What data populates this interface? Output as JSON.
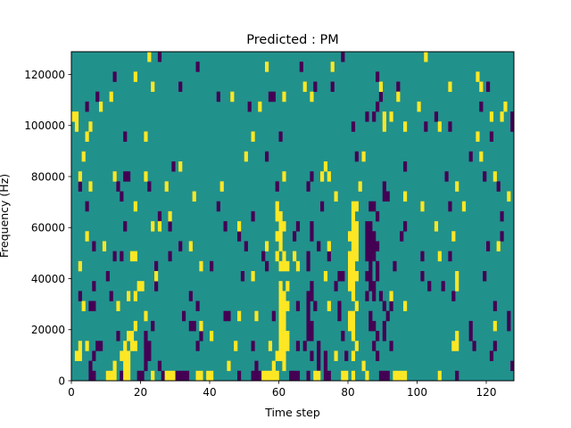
{
  "chart_data": {
    "type": "heatmap",
    "title": "Predicted : PM",
    "xlabel": "Time step",
    "ylabel": "Frequency (Hz)",
    "xlim": [
      0,
      128
    ],
    "ylim": [
      0,
      128906.25
    ],
    "n_time_steps": 128,
    "n_freq_bins": 33,
    "freq_bin_hz": 3906.25,
    "xticks": [
      0,
      20,
      40,
      60,
      80,
      100,
      120
    ],
    "xtick_labels": [
      "0",
      "20",
      "40",
      "60",
      "80",
      "100",
      "120"
    ],
    "yticks": [
      0,
      20000,
      40000,
      60000,
      80000,
      100000,
      120000
    ],
    "ytick_labels": [
      "0",
      "20000",
      "40000",
      "60000",
      "80000",
      "100000",
      "120000"
    ],
    "colormap": "viridis",
    "value_levels": {
      "low": 0,
      "default": 0.5,
      "high": 1
    },
    "colors": {
      "low": "#440154",
      "default": "#21918c",
      "high": "#fde725"
    },
    "cells_value_0_by_freq_bin": {
      "32": [
        25,
        78
      ],
      "31": [
        36,
        66
      ],
      "30": [
        12,
        88
      ],
      "29": [
        31,
        70,
        75,
        94,
        120
      ],
      "28": [
        7,
        42,
        57,
        58,
        89
      ],
      "27": [
        4,
        51,
        88,
        118
      ],
      "26": [
        85,
        87,
        105,
        127
      ],
      "25": [
        81,
        102,
        109,
        127
      ],
      "24": [
        15,
        60,
        121
      ],
      "22": [
        56,
        82,
        115
      ],
      "21": [
        29,
        96
      ],
      "20": [
        15,
        16,
        69,
        108,
        119
      ],
      "19": [
        2,
        13,
        22,
        59,
        68,
        90,
        123
      ],
      "18": [
        14,
        90,
        91
      ],
      "17": [
        4,
        42,
        72,
        86,
        87,
        109
      ],
      "16": [
        25,
        52,
        88,
        124
      ],
      "15": [
        15,
        28,
        44,
        65,
        69,
        85,
        86,
        96
      ],
      "14": [
        48,
        64,
        69,
        85,
        86,
        87,
        95,
        124
      ],
      "13": [
        6,
        31,
        50,
        71,
        85,
        86,
        87,
        88,
        120
      ],
      "12": [
        12,
        14,
        28,
        55,
        68,
        74,
        85,
        86,
        87,
        101,
        109
      ],
      "11": [
        24,
        40,
        56,
        68,
        86,
        88,
        93
      ],
      "10": [
        10,
        49,
        77,
        78,
        85,
        86,
        88,
        101,
        119
      ],
      "9": [
        6,
        24,
        69,
        76,
        86,
        87,
        103,
        107
      ],
      "8": [
        2,
        11,
        34,
        68,
        69,
        85,
        87,
        89,
        110
      ],
      "7": [
        5,
        6,
        36,
        65,
        68,
        70,
        77,
        90,
        92,
        122
      ],
      "6": [
        32,
        44,
        45,
        58,
        68,
        77,
        86,
        91,
        126
      ],
      "5": [
        23,
        34,
        35,
        68,
        69,
        86,
        87,
        90,
        115,
        126
      ],
      "4": [
        13,
        21,
        37,
        68,
        69,
        78,
        88,
        90,
        115
      ],
      "3": [
        7,
        8,
        21,
        22,
        36,
        52,
        65,
        67,
        71,
        87,
        92,
        116,
        122
      ],
      "2": [
        6,
        21,
        22,
        69,
        71,
        73,
        79,
        88,
        121
      ],
      "1": [
        5,
        21,
        25,
        53,
        71,
        73,
        127
      ],
      "0": [
        5,
        6,
        14,
        19,
        20,
        26,
        30,
        31,
        32,
        33,
        48,
        52,
        53,
        54,
        63,
        64,
        65,
        68,
        73,
        74,
        89,
        90,
        91,
        111
      ]
    },
    "cells_value_1_by_freq_bin": {
      "32": [
        22,
        102
      ],
      "31": [
        56,
        75
      ],
      "30": [
        18,
        117
      ],
      "29": [
        23,
        67,
        89,
        109,
        118
      ],
      "28": [
        11,
        46,
        61,
        69,
        94
      ],
      "27": [
        8,
        54,
        100,
        125
      ],
      "26": [
        0,
        1,
        90,
        92,
        121,
        124
      ],
      "25": [
        1,
        5,
        90,
        96,
        106
      ],
      "24": [
        4,
        21,
        52,
        117
      ],
      "22": [
        3,
        50,
        84,
        118
      ],
      "21": [
        31,
        73
      ],
      "20": [
        2,
        12,
        21,
        61,
        72,
        74,
        122
      ],
      "19": [
        5,
        27,
        43,
        83,
        111
      ],
      "18": [
        35,
        76,
        96,
        126
      ],
      "17": [
        18,
        59,
        81,
        82,
        101,
        113
      ],
      "16": [
        28,
        59,
        60,
        81
      ],
      "15": [
        23,
        25,
        48,
        60,
        61,
        81,
        82,
        105
      ],
      "14": [
        4,
        59,
        60,
        80,
        81,
        82,
        110
      ],
      "13": [
        9,
        34,
        56,
        60,
        74,
        81,
        82,
        123
      ],
      "12": [
        17,
        18,
        59,
        61,
        64,
        80,
        81,
        82,
        106
      ],
      "11": [
        2,
        37,
        60,
        61,
        62,
        65,
        80,
        81
      ],
      "10": [
        24,
        52,
        73,
        80,
        81,
        82,
        111
      ],
      "9": [
        19,
        20,
        60,
        62,
        80,
        81,
        111
      ],
      "8": [
        16,
        18,
        60,
        61,
        81,
        92
      ],
      "7": [
        3,
        13,
        60,
        61,
        62,
        74,
        82,
        96
      ],
      "6": [
        21,
        48,
        53,
        60,
        61,
        80,
        81
      ],
      "5": [
        18,
        37,
        60,
        61,
        80,
        81,
        122
      ],
      "4": [
        16,
        17,
        40,
        60,
        61,
        62,
        81,
        111
      ],
      "3": [
        2,
        4,
        15,
        17,
        18,
        47,
        57,
        60,
        61,
        62,
        82,
        110,
        111
      ],
      "2": [
        1,
        2,
        14,
        15,
        16,
        59,
        60,
        61,
        76,
        81
      ],
      "1": [
        12,
        15,
        16,
        45,
        58,
        61,
        84
      ],
      "0": [
        10,
        11,
        12,
        15,
        16,
        23,
        27,
        28,
        29,
        36,
        37,
        39,
        40,
        55,
        56,
        57,
        58,
        59,
        70,
        71,
        78,
        79,
        81,
        85,
        93,
        94,
        95,
        96,
        106
      ]
    }
  }
}
